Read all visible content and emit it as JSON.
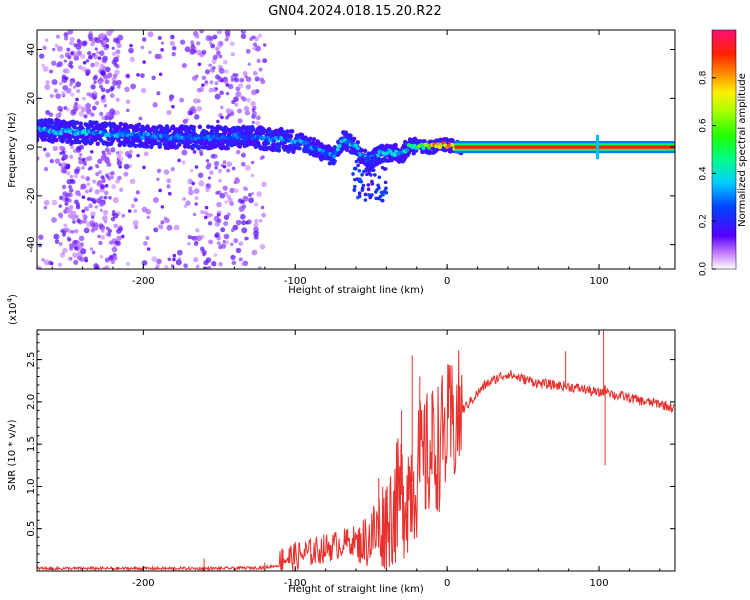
{
  "title": "GN04.2024.018.15.20.R22",
  "chart_data": [
    {
      "type": "heatmap",
      "panel": "spectrogram",
      "xlabel": "Height of straight line (km)",
      "ylabel": "Frequency (Hz)",
      "xlim": [
        -270,
        150
      ],
      "ylim": [
        -50,
        48
      ],
      "x_ticks": [
        -200,
        -100,
        0,
        100
      ],
      "y_ticks": [
        -40,
        -20,
        0,
        20,
        40
      ],
      "x_tick_labels": [
        "-200",
        "-100",
        "0",
        "100"
      ],
      "y_tick_labels": [
        "-40",
        "-20",
        "0",
        "20",
        "40"
      ],
      "colorbar": {
        "label": "Normalized spectral amplitude",
        "range": [
          0,
          1
        ],
        "ticks": [
          0.0,
          0.2,
          0.4,
          0.6,
          0.8
        ],
        "tick_labels": [
          "0.0",
          "0.2",
          "0.4",
          "0.6",
          "0.8"
        ],
        "colormap": "rainbow"
      },
      "ridge": {
        "x": [
          -270,
          -240,
          -210,
          -180,
          -150,
          -130,
          -110,
          -95,
          -85,
          -75,
          -68,
          -60,
          -52,
          -45,
          -38,
          -30,
          -24,
          -18,
          -10,
          0,
          5,
          10,
          50,
          100,
          150
        ],
        "y": [
          7,
          6,
          5,
          4,
          4,
          4,
          3,
          2,
          -1,
          -4,
          3,
          0,
          -6,
          -3,
          -2,
          -3,
          1,
          0,
          0,
          1,
          0,
          0,
          0,
          0,
          0
        ],
        "amplitude": [
          0.35,
          0.35,
          0.3,
          0.3,
          0.28,
          0.25,
          0.3,
          0.3,
          0.3,
          0.3,
          0.4,
          0.35,
          0.35,
          0.35,
          0.4,
          0.35,
          0.45,
          0.55,
          0.75,
          0.8,
          0.9,
          0.9,
          0.9,
          0.9,
          0.9
        ]
      }
    },
    {
      "type": "line",
      "panel": "snr",
      "xlabel": "Height of straight line (km)",
      "ylabel": "SNR (10 * v/v)",
      "yscale_label": "(x10",
      "yscale_exp": "4",
      "yscale_close": ")",
      "xlim": [
        -270,
        150
      ],
      "ylim": [
        0.0,
        2.85
      ],
      "x_ticks": [
        -200,
        -100,
        0,
        100
      ],
      "y_ticks": [
        0.5,
        1.0,
        1.5,
        2.0,
        2.5
      ],
      "x_tick_labels": [
        "-200",
        "-100",
        "0",
        "100"
      ],
      "y_tick_labels": [
        "0.5",
        "1.0",
        "1.5",
        "2.0",
        "2.5"
      ],
      "color": "#e8302c",
      "series": [
        {
          "x": [
            -270,
            -240,
            -210,
            -180,
            -150,
            -120,
            -110,
            -100,
            -90,
            -80,
            -70,
            -60,
            -50,
            -45,
            -40,
            -35,
            -30,
            -25,
            -20,
            -15,
            -10,
            -5,
            0,
            5,
            10,
            15,
            20,
            25,
            30,
            35,
            40,
            45,
            50,
            55,
            60,
            70,
            80,
            90,
            100,
            105,
            110,
            120,
            130,
            140,
            150
          ],
          "y": [
            0.03,
            0.03,
            0.03,
            0.03,
            0.03,
            0.04,
            0.07,
            0.1,
            0.15,
            0.2,
            0.25,
            0.3,
            0.4,
            0.5,
            0.6,
            0.75,
            0.9,
            1.0,
            1.15,
            1.3,
            1.4,
            1.5,
            1.65,
            1.75,
            1.9,
            2.0,
            2.1,
            2.2,
            2.25,
            2.3,
            2.33,
            2.3,
            2.27,
            2.25,
            2.22,
            2.2,
            2.18,
            2.15,
            2.1,
            2.15,
            2.08,
            2.05,
            2.0,
            1.98,
            1.92
          ]
        }
      ],
      "spikes": {
        "x": [
          -160,
          -120,
          -108,
          -45,
          -30,
          -23,
          -18,
          -10,
          78,
          103,
          104
        ],
        "y": [
          0.15,
          0.1,
          0.25,
          1.1,
          1.9,
          2.55,
          2.3,
          2.1,
          2.6,
          2.85,
          1.25
        ]
      }
    }
  ]
}
